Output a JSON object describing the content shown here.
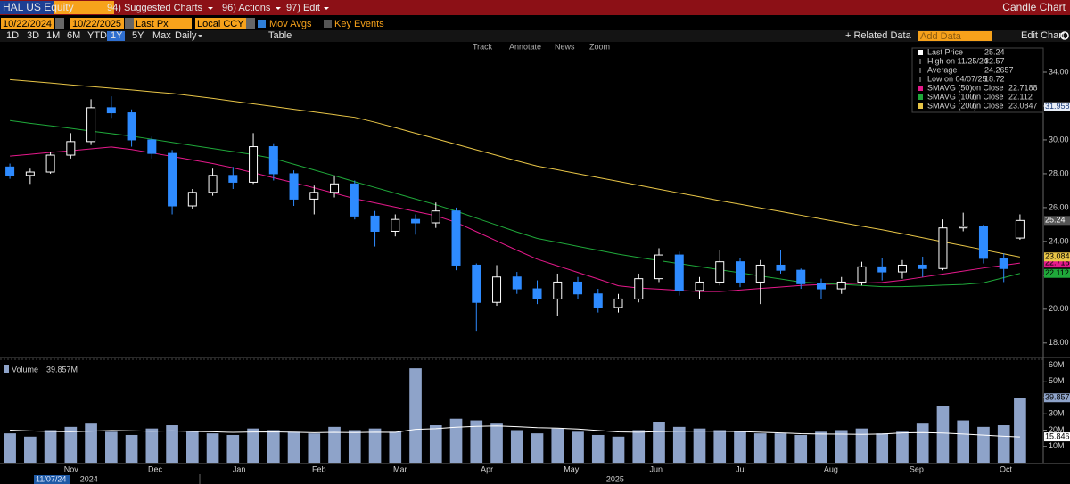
{
  "toolbar": {
    "ticker": "HAL US Equity",
    "menus": [
      "94) Suggested Charts",
      "96) Actions",
      "97) Edit"
    ],
    "chart_name": "Candle Chart",
    "start_date": "10/22/2024",
    "end_date": "10/22/2025",
    "price_field": "Last Px",
    "currency": "Local CCY",
    "mov_avgs": "Mov Avgs",
    "key_events": "Key Events",
    "periods": [
      "1D",
      "3D",
      "1M",
      "6M",
      "YTD",
      "1Y",
      "5Y",
      "Max"
    ],
    "selected_period": 5,
    "frequency": "Daily",
    "table": "Table",
    "related_data": "+ Related Data",
    "add_data": "Add Data",
    "edit_chart": "Edit Chart",
    "tools": [
      "Track",
      "Annotate",
      "News",
      "Zoom"
    ]
  },
  "chart_data": [
    {
      "type": "candlestick",
      "up_color": "#ffffff",
      "down_color": "#2e8bff",
      "cursor_date": "11/07/24",
      "x": [
        2,
        7,
        12,
        17,
        22,
        27,
        32,
        37,
        42,
        47,
        52,
        57,
        62,
        67,
        72,
        77,
        82,
        87,
        92,
        97,
        102,
        107,
        112,
        117,
        122,
        127,
        132,
        137,
        142,
        147,
        152,
        157,
        162,
        167,
        172,
        177,
        182,
        187,
        192,
        197,
        202,
        207,
        212,
        217,
        222,
        227,
        232,
        237,
        242,
        247,
        251
      ],
      "open": [
        28.4,
        27.9,
        28.1,
        29.1,
        29.9,
        31.9,
        31.6,
        30.0,
        29.2,
        26.1,
        26.9,
        27.9,
        27.5,
        29.6,
        28.0,
        26.5,
        26.9,
        27.4,
        25.5,
        24.6,
        25.3,
        25.1,
        25.8,
        22.6,
        20.4,
        21.9,
        21.2,
        20.6,
        21.6,
        20.9,
        20.1,
        20.6,
        21.8,
        23.2,
        21.1,
        21.6,
        22.8,
        21.6,
        22.6,
        22.3,
        21.5,
        21.2,
        21.6,
        22.5,
        22.2,
        22.6,
        22.4,
        24.8,
        24.9,
        23.0,
        24.2
      ],
      "high": [
        28.6,
        28.3,
        29.3,
        30.4,
        32.4,
        32.57,
        31.8,
        30.2,
        29.4,
        27.1,
        28.3,
        28.4,
        30.4,
        29.8,
        28.2,
        27.3,
        27.9,
        27.6,
        25.8,
        25.6,
        25.6,
        26.3,
        26.0,
        22.7,
        22.6,
        22.2,
        21.7,
        22.1,
        21.9,
        21.2,
        20.9,
        22.1,
        23.6,
        23.4,
        21.9,
        23.5,
        23.0,
        22.9,
        23.5,
        22.4,
        21.8,
        21.9,
        22.8,
        23.0,
        22.9,
        23.1,
        25.3,
        25.7,
        25.0,
        23.3,
        25.6
      ],
      "low": [
        27.7,
        27.4,
        28.0,
        28.9,
        29.7,
        31.3,
        29.6,
        28.9,
        25.6,
        25.9,
        26.7,
        27.1,
        27.4,
        27.6,
        26.1,
        25.6,
        26.6,
        25.3,
        23.7,
        24.3,
        24.4,
        24.8,
        22.3,
        18.72,
        20.2,
        20.9,
        20.3,
        19.6,
        20.6,
        19.8,
        19.8,
        20.4,
        21.6,
        20.8,
        20.6,
        21.4,
        21.3,
        20.3,
        22.1,
        21.2,
        20.6,
        20.9,
        21.4,
        21.7,
        21.8,
        21.9,
        22.3,
        24.6,
        22.7,
        21.6,
        24.1
      ],
      "close": [
        27.9,
        28.1,
        29.1,
        29.9,
        31.9,
        31.6,
        30.0,
        29.2,
        26.1,
        26.9,
        27.9,
        27.5,
        29.6,
        28.0,
        26.5,
        26.9,
        27.4,
        25.5,
        24.6,
        25.3,
        25.1,
        25.8,
        22.6,
        20.4,
        21.9,
        21.2,
        20.6,
        21.6,
        20.9,
        20.1,
        20.6,
        21.8,
        23.2,
        21.1,
        21.6,
        22.8,
        21.6,
        22.6,
        22.3,
        21.5,
        21.2,
        21.6,
        22.5,
        22.2,
        22.6,
        22.4,
        24.8,
        24.9,
        23.0,
        22.4,
        25.24
      ],
      "series": [
        {
          "name": "SMAVG (50)",
          "note": "on Close",
          "value": 22.7188,
          "color": "#e5198b",
          "values": [
            29.04,
            29.15,
            29.26,
            29.36,
            29.47,
            29.58,
            29.43,
            29.23,
            29.02,
            28.81,
            28.6,
            28.35,
            28.06,
            27.76,
            27.47,
            27.17,
            26.85,
            26.53,
            26.28,
            26.03,
            25.77,
            25.52,
            25.13,
            24.58,
            24.03,
            23.48,
            22.95,
            22.56,
            22.17,
            21.78,
            21.38,
            21.25,
            21.18,
            21.11,
            21.04,
            21.04,
            21.13,
            21.22,
            21.31,
            21.4,
            21.45,
            21.49,
            21.54,
            21.58,
            21.71,
            21.89,
            22.07,
            22.25,
            22.43,
            22.59,
            22.72
          ]
        },
        {
          "name": "SMAVG (100)",
          "note": "on Close",
          "value": 22.112,
          "color": "#1fa83a",
          "values": [
            31.14,
            30.98,
            30.83,
            30.68,
            30.52,
            30.37,
            30.22,
            30.04,
            29.85,
            29.67,
            29.49,
            29.31,
            29.13,
            28.9,
            28.56,
            28.22,
            27.88,
            27.53,
            27.19,
            26.85,
            26.51,
            26.17,
            25.79,
            25.38,
            24.97,
            24.56,
            24.18,
            23.95,
            23.71,
            23.48,
            23.25,
            23.05,
            22.87,
            22.69,
            22.51,
            22.33,
            22.15,
            21.96,
            21.78,
            21.6,
            21.53,
            21.46,
            21.4,
            21.33,
            21.33,
            21.37,
            21.42,
            21.46,
            21.56,
            21.86,
            22.11
          ]
        },
        {
          "name": "SMAVG (200)",
          "note": "on Close",
          "value": 23.0847,
          "color": "#e8c547",
          "values": [
            33.56,
            33.46,
            33.36,
            33.25,
            33.15,
            33.05,
            32.95,
            32.84,
            32.74,
            32.6,
            32.45,
            32.29,
            32.13,
            31.97,
            31.81,
            31.65,
            31.49,
            31.33,
            31.04,
            30.72,
            30.39,
            30.07,
            29.74,
            29.41,
            29.09,
            28.76,
            28.45,
            28.23,
            28.0,
            27.77,
            27.55,
            27.32,
            27.09,
            26.86,
            26.64,
            26.41,
            26.2,
            25.98,
            25.77,
            25.55,
            25.33,
            25.12,
            24.9,
            24.69,
            24.46,
            24.22,
            23.98,
            23.75,
            23.51,
            23.27,
            23.08
          ]
        }
      ],
      "stats": [
        {
          "label": "Last Price",
          "value": 25.24
        },
        {
          "label": "High on 11/25/24",
          "value": 32.57
        },
        {
          "label": "Average",
          "value": 24.2657
        },
        {
          "label": "Low on 04/07/25",
          "value": 18.72
        }
      ],
      "crosshair_value": 31.9582,
      "xlim": [
        0,
        253
      ],
      "xticks": [
        {
          "value": 17.1,
          "label": "Nov"
        },
        {
          "value": 37.8,
          "label": "Dec"
        },
        {
          "value": 58.5,
          "label": "Jan"
        },
        {
          "value": 78.2,
          "label": "Feb"
        },
        {
          "value": 98.2,
          "label": "Mar"
        },
        {
          "value": 119.6,
          "label": "Apr"
        },
        {
          "value": 140.4,
          "label": "May"
        },
        {
          "value": 161.3,
          "label": "Jun"
        },
        {
          "value": 182.2,
          "label": "Jul"
        },
        {
          "value": 204.4,
          "label": "Aug"
        },
        {
          "value": 225.5,
          "label": "Sep"
        },
        {
          "value": 247.5,
          "label": "Oct"
        }
      ],
      "year_ticks": [
        {
          "value": 21.5,
          "label": "2024"
        },
        {
          "value": 151.2,
          "label": "2025"
        }
      ],
      "ylim": [
        17.2,
        35
      ],
      "yticks": [
        {
          "value": 18,
          "label": "18.00"
        },
        {
          "value": 20,
          "label": "20.00"
        },
        {
          "value": 22,
          "label": "22.00"
        },
        {
          "value": 24,
          "label": "24.00"
        },
        {
          "value": 26,
          "label": "26.00"
        },
        {
          "value": 28,
          "label": "28.00"
        },
        {
          "value": 30,
          "label": "30.00"
        },
        {
          "value": 32,
          "label": "32.00"
        },
        {
          "value": 34,
          "label": "34.00"
        }
      ]
    },
    {
      "type": "bar",
      "series": [
        {
          "name": "Volume",
          "color": "#8ea3c9",
          "last_label": "39.857M",
          "values": [
            18,
            16,
            20,
            22,
            24,
            19,
            17,
            21,
            23,
            19,
            18,
            17,
            21,
            20,
            19,
            18,
            22,
            20,
            21,
            19,
            58,
            23,
            27,
            26,
            24,
            20,
            18,
            21,
            19,
            17,
            16,
            20,
            25,
            22,
            21,
            20,
            19,
            18,
            18,
            17,
            19,
            20,
            21,
            18,
            19,
            24,
            35,
            26,
            22,
            23,
            39.857
          ]
        },
        {
          "color": "#ffffff",
          "last_label": "15.846M",
          "values": [
            20,
            19.5,
            19.2,
            19,
            19.4,
            19.8,
            19.6,
            19.3,
            19.5,
            19.2,
            19,
            18.6,
            18.8,
            18.9,
            18.7,
            18.4,
            18.6,
            18.5,
            18.7,
            18.6,
            20.5,
            20.9,
            21.8,
            22.3,
            22.6,
            22.1,
            21.5,
            21.2,
            20.7,
            19.8,
            18.9,
            18.7,
            19.1,
            19.3,
            19.4,
            19.3,
            19.1,
            18.7,
            18.3,
            17.8,
            17.6,
            17.5,
            17.4,
            17.6,
            18.3,
            18.5,
            18.2,
            17.6,
            16.9,
            16.2,
            15.846
          ]
        }
      ],
      "ylim": [
        0,
        63
      ],
      "yticks": [
        {
          "value": 10,
          "label": "10M"
        },
        {
          "value": 20,
          "label": "20M"
        },
        {
          "value": 30,
          "label": "30M"
        },
        {
          "value": 40,
          "label": "40M"
        },
        {
          "value": 50,
          "label": "50M"
        },
        {
          "value": 60,
          "label": "60M"
        }
      ]
    }
  ]
}
